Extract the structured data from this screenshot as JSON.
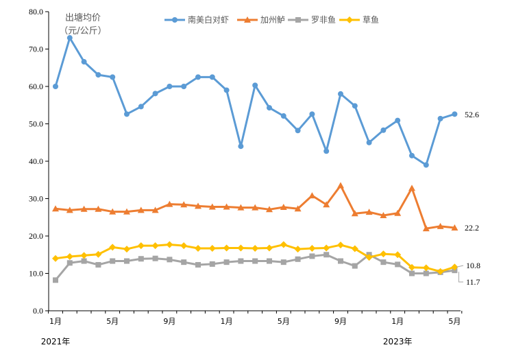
{
  "chart_data": {
    "type": "line",
    "ylabel": "出塘均价\n（元/公斤）",
    "ylabel_lines": [
      "出塘均价",
      "（元/公斤）"
    ],
    "ylim": [
      0,
      80
    ],
    "yticks": [
      "0.0",
      "10.0",
      "20.0",
      "30.0",
      "40.0",
      "50.0",
      "60.0",
      "70.0",
      "80.0"
    ],
    "x_tick_labels": [
      {
        "index": 0,
        "label": "1月"
      },
      {
        "index": 4,
        "label": "5月"
      },
      {
        "index": 8,
        "label": "9月"
      },
      {
        "index": 12,
        "label": "1月"
      },
      {
        "index": 16,
        "label": "5月"
      },
      {
        "index": 20,
        "label": "9月"
      },
      {
        "index": 24,
        "label": "1月"
      },
      {
        "index": 28,
        "label": "5月"
      }
    ],
    "year_labels": [
      {
        "index": 0,
        "label": "2021年"
      },
      {
        "index": 24,
        "label": "2023年"
      }
    ],
    "legend_position": "top",
    "grid": false,
    "series": [
      {
        "name": "南美白对虾",
        "color": "#5b9bd5",
        "marker": "circle",
        "values": [
          60,
          73,
          66.6,
          63.1,
          62.5,
          52.6,
          54.6,
          58.1,
          60,
          60,
          62.5,
          62.5,
          59,
          44,
          60.3,
          54.3,
          52.1,
          48.2,
          52.6,
          42.7,
          58,
          54.8,
          45,
          48.3,
          50.9,
          41.5,
          39,
          51.4,
          52.6
        ]
      },
      {
        "name": "加州鲈",
        "color": "#ed7d31",
        "marker": "triangle",
        "values": [
          27.3,
          26.9,
          27.2,
          27.2,
          26.5,
          26.5,
          26.9,
          26.9,
          28.5,
          28.4,
          28,
          27.8,
          27.8,
          27.6,
          27.6,
          27.1,
          27.7,
          27.3,
          30.8,
          28.4,
          33.5,
          26,
          26.4,
          25.5,
          26.1,
          32.8,
          22,
          22.6,
          22.2
        ]
      },
      {
        "name": "罗非鱼",
        "color": "#a5a5a5",
        "marker": "square",
        "values": [
          8.2,
          12.8,
          13.3,
          12.3,
          13.3,
          13.3,
          13.9,
          14,
          13.7,
          13,
          12.3,
          12.5,
          13,
          13.3,
          13.3,
          13.3,
          13,
          13.8,
          14.6,
          15,
          13.3,
          12,
          15,
          13,
          12.4,
          10,
          10,
          10.3,
          10.8
        ]
      },
      {
        "name": "草鱼",
        "color": "#ffc000",
        "marker": "diamond",
        "values": [
          14,
          14.5,
          14.8,
          15.1,
          17,
          16.5,
          17.4,
          17.4,
          17.7,
          17.4,
          16.7,
          16.7,
          16.8,
          16.8,
          16.7,
          16.8,
          17.7,
          16.5,
          16.7,
          16.8,
          17.6,
          16.6,
          14.3,
          15.2,
          15,
          11.6,
          11.5,
          10.5,
          11.7
        ]
      }
    ],
    "end_labels": [
      {
        "series": 0,
        "text": "52.6"
      },
      {
        "series": 1,
        "text": "22.2"
      },
      {
        "series": 3,
        "text": "10.8"
      },
      {
        "series": 2,
        "text": "11.7"
      }
    ]
  }
}
